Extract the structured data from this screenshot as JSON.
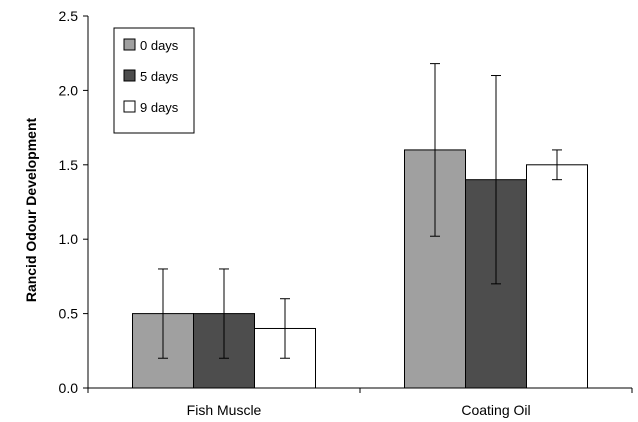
{
  "chart_data": {
    "type": "bar",
    "title": "",
    "xlabel": "",
    "ylabel": "Rancid Odour Development",
    "ylim": [
      0,
      2.5
    ],
    "yticks": [
      "0.0",
      "0.5",
      "1.0",
      "1.5",
      "2.0",
      "2.5"
    ],
    "categories": [
      "Fish Muscle",
      "Coating Oil"
    ],
    "series": [
      {
        "name": "0 days",
        "color": "#a0a0a0",
        "values": [
          0.5,
          1.6
        ],
        "error_low": [
          0.2,
          1.02
        ],
        "error_high": [
          0.8,
          2.18
        ]
      },
      {
        "name": "5 days",
        "color": "#4d4d4d",
        "values": [
          0.5,
          1.4
        ],
        "error_low": [
          0.2,
          0.7
        ],
        "error_high": [
          0.8,
          2.1
        ]
      },
      {
        "name": "9 days",
        "color": "#ffffff",
        "values": [
          0.4,
          1.5
        ],
        "error_low": [
          0.2,
          1.4
        ],
        "error_high": [
          0.6,
          1.6
        ]
      }
    ],
    "grid": false,
    "legend": "top-left",
    "error_bars": true
  }
}
